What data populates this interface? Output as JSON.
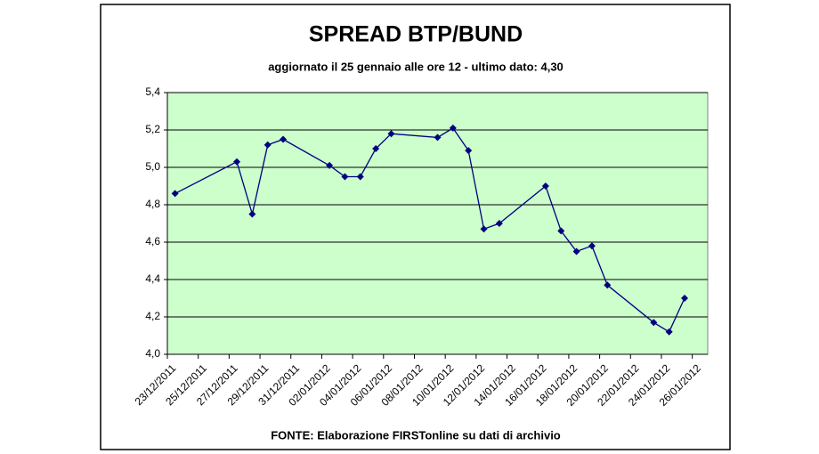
{
  "chart_data": {
    "type": "line",
    "title": "SPREAD BTP/BUND",
    "subtitle": "aggiornato il 25 gennaio alle ore 12 - ultimo dato: 4,30",
    "source": "FONTE: Elaborazione FIRSTonline su dati di archivio",
    "x": [
      "23/12/2011",
      "27/12/2011",
      "28/12/2011",
      "29/12/2011",
      "30/12/2011",
      "02/01/2012",
      "03/01/2012",
      "04/01/2012",
      "05/01/2012",
      "06/01/2012",
      "09/01/2012",
      "10/01/2012",
      "11/01/2012",
      "12/01/2012",
      "13/01/2012",
      "16/01/2012",
      "17/01/2012",
      "18/01/2012",
      "19/01/2012",
      "20/01/2012",
      "23/01/2012",
      "24/01/2012",
      "25/01/2012"
    ],
    "series": [
      {
        "color": "#000080",
        "values": [
          4.86,
          5.03,
          4.75,
          5.12,
          5.15,
          5.01,
          4.95,
          4.95,
          5.1,
          5.18,
          5.16,
          5.21,
          5.09,
          4.67,
          4.7,
          4.9,
          4.66,
          4.55,
          4.58,
          4.37,
          4.17,
          4.12,
          4.3
        ]
      }
    ],
    "xlim": [
      "23/12/2011",
      "27/01/2012"
    ],
    "xticks": [
      "23/12/2011",
      "25/12/2011",
      "27/12/2011",
      "29/12/2011",
      "31/12/2011",
      "02/01/2012",
      "04/01/2012",
      "06/01/2012",
      "08/01/2012",
      "10/01/2012",
      "12/01/2012",
      "14/01/2012",
      "16/01/2012",
      "18/01/2012",
      "20/01/2012",
      "22/01/2012",
      "24/01/2012",
      "26/01/2012"
    ],
    "ylim": [
      4.0,
      5.4
    ],
    "yticks": [
      {
        "value": 4.0,
        "label": "4,0"
      },
      {
        "value": 4.2,
        "label": "4,2"
      },
      {
        "value": 4.4,
        "label": "4,4"
      },
      {
        "value": 4.6,
        "label": "4,6"
      },
      {
        "value": 4.8,
        "label": "4,8"
      },
      {
        "value": 5.0,
        "label": "5,0"
      },
      {
        "value": 5.2,
        "label": "5,2"
      },
      {
        "value": 5.4,
        "label": "5,4"
      }
    ],
    "grid": true,
    "plot_background": "#ccffcc"
  }
}
